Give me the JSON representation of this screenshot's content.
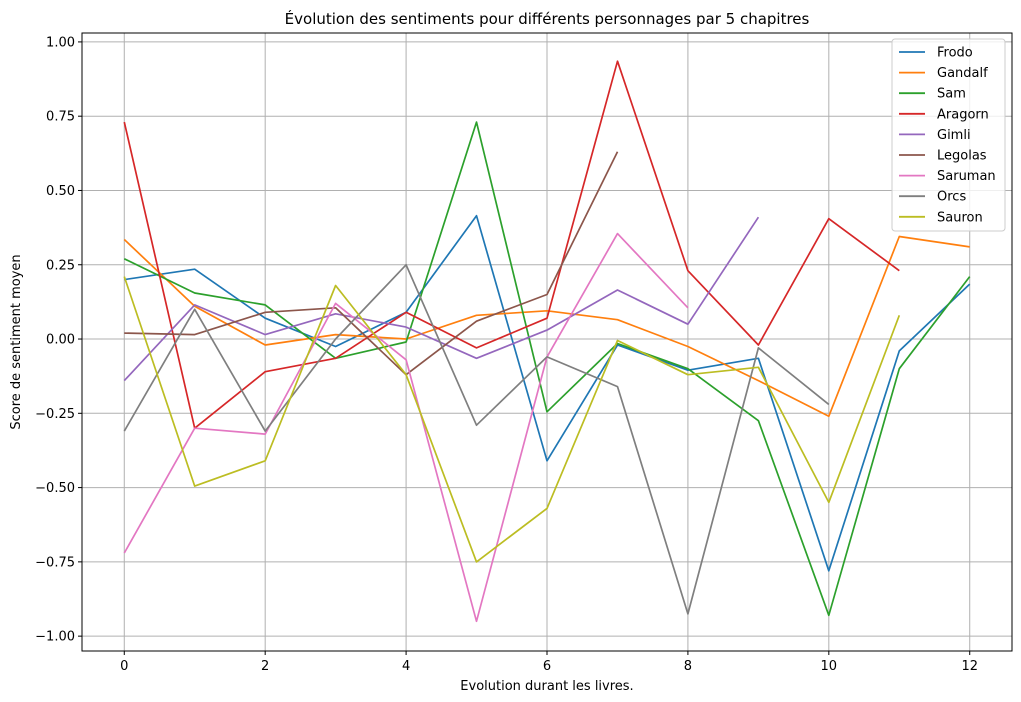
{
  "chart_data": {
    "type": "line",
    "title": "Évolution des sentiments pour différents personnages par 5 chapitres",
    "xlabel": "Evolution durant les livres.",
    "ylabel": "Score de sentiment moyen",
    "xlim": [
      -0.6,
      12.6
    ],
    "ylim": [
      -1.05,
      1.03
    ],
    "xticks": [
      0,
      2,
      4,
      6,
      8,
      10,
      12
    ],
    "xtick_labels": [
      "0",
      "2",
      "4",
      "6",
      "8",
      "10",
      "12"
    ],
    "yticks": [
      1.0,
      0.75,
      0.5,
      0.25,
      0.0,
      -0.25,
      -0.5,
      -0.75,
      -1.0
    ],
    "ytick_labels": [
      "1.00",
      "0.75",
      "0.50",
      "0.25",
      "0.00",
      "−0.25",
      "−0.50",
      "−0.75",
      "−1.00"
    ],
    "grid": true,
    "legend_position": "top-right",
    "series": [
      {
        "name": "Frodo",
        "color": "#1f77b4",
        "x": [
          0,
          1,
          2,
          3,
          4,
          5,
          6,
          7,
          8,
          9,
          10,
          11,
          12
        ],
        "y": [
          0.2,
          0.235,
          0.07,
          -0.025,
          0.09,
          0.415,
          -0.41,
          -0.02,
          -0.105,
          -0.065,
          -0.78,
          -0.04,
          0.185
        ]
      },
      {
        "name": "Gandalf",
        "color": "#ff7f0e",
        "x": [
          0,
          1,
          2,
          3,
          4,
          5,
          6,
          7,
          8,
          9,
          10,
          11,
          12
        ],
        "y": [
          0.335,
          0.11,
          -0.02,
          0.015,
          0.0,
          0.08,
          0.095,
          0.065,
          -0.025,
          -0.14,
          -0.26,
          0.345,
          0.31
        ]
      },
      {
        "name": "Sam",
        "color": "#2ca02c",
        "x": [
          0,
          1,
          2,
          3,
          4,
          5,
          6,
          7,
          8,
          9,
          10,
          11,
          12
        ],
        "y": [
          0.27,
          0.155,
          0.115,
          -0.065,
          -0.01,
          0.73,
          -0.245,
          -0.015,
          -0.1,
          -0.275,
          -0.93,
          -0.1,
          0.21
        ]
      },
      {
        "name": "Aragorn",
        "color": "#d62728",
        "x": [
          0,
          1,
          2,
          3,
          4,
          5,
          6,
          7,
          8,
          9,
          10,
          11
        ],
        "y": [
          0.73,
          -0.3,
          -0.11,
          -0.065,
          0.09,
          -0.03,
          0.07,
          0.935,
          0.23,
          -0.02,
          0.405,
          0.23
        ]
      },
      {
        "name": "Gimli",
        "color": "#9467bd",
        "x": [
          0,
          1,
          2,
          3,
          4,
          5,
          6,
          7,
          8,
          9
        ],
        "y": [
          -0.14,
          0.115,
          0.015,
          0.085,
          0.04,
          -0.065,
          0.03,
          0.165,
          0.05,
          0.41
        ]
      },
      {
        "name": "Legolas",
        "color": "#8c564b",
        "x": [
          0,
          1,
          2,
          3,
          4,
          5,
          6,
          7
        ],
        "y": [
          0.02,
          0.015,
          0.09,
          0.105,
          -0.12,
          0.06,
          0.15,
          0.63
        ]
      },
      {
        "name": "Saruman",
        "color": "#e377c2",
        "x": [
          0,
          1,
          2,
          3,
          4,
          5,
          6,
          7,
          8
        ],
        "y": [
          -0.72,
          -0.3,
          -0.32,
          0.12,
          -0.07,
          -0.95,
          -0.06,
          0.355,
          0.105
        ]
      },
      {
        "name": "Orcs",
        "color": "#7f7f7f",
        "x": [
          0,
          1,
          2,
          3,
          4,
          5,
          6,
          7,
          8,
          9,
          10
        ],
        "y": [
          -0.31,
          0.1,
          -0.31,
          0.0,
          0.25,
          -0.29,
          -0.06,
          -0.16,
          -0.925,
          -0.03,
          -0.22
        ]
      },
      {
        "name": "Sauron",
        "color": "#bcbd22",
        "x": [
          0,
          1,
          2,
          3,
          4,
          5,
          6,
          7,
          8,
          9,
          10,
          11
        ],
        "y": [
          0.21,
          -0.495,
          -0.41,
          0.18,
          -0.12,
          -0.75,
          -0.57,
          -0.005,
          -0.12,
          -0.095,
          -0.55,
          0.08
        ]
      }
    ]
  }
}
